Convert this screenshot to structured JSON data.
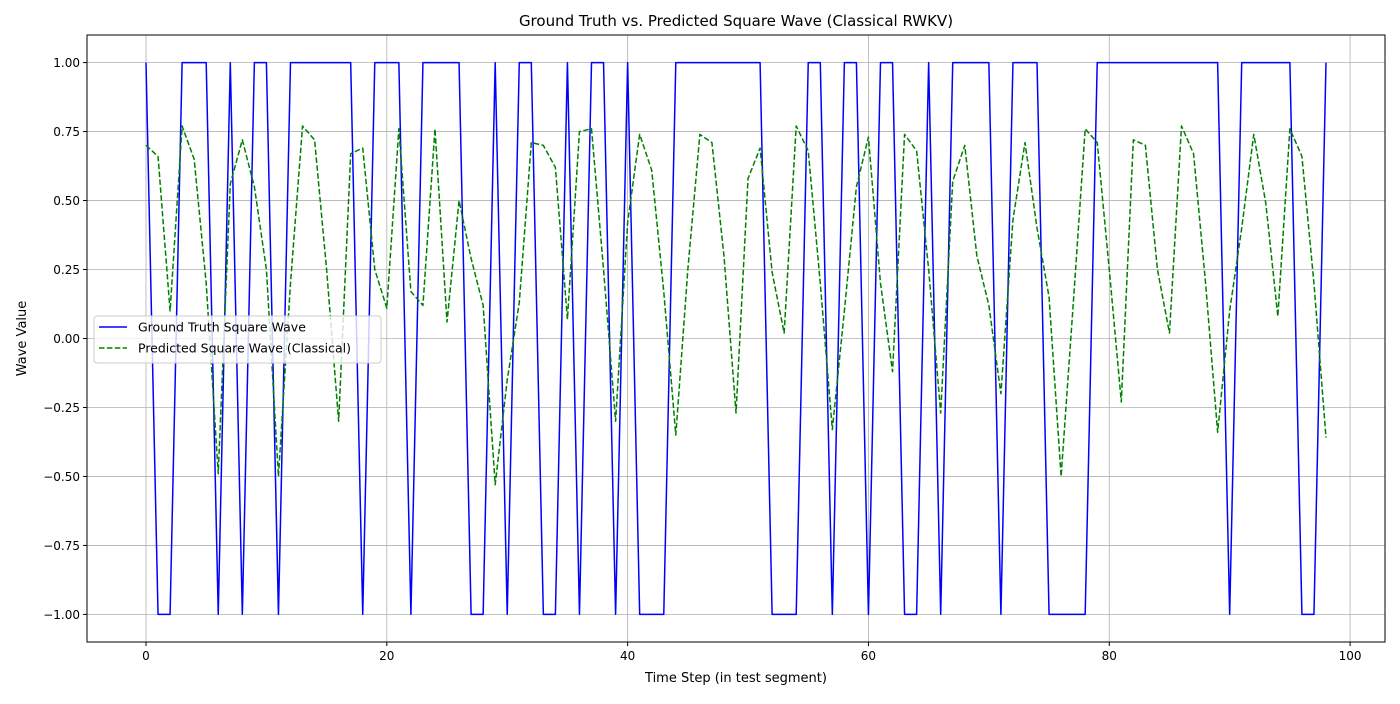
{
  "chart_data": {
    "type": "line",
    "title": "Ground Truth vs. Predicted Square Wave (Classical RWKV)",
    "xlabel": "Time Step (in test segment)",
    "ylabel": "Wave Value",
    "xlim": [
      -4.9,
      102.9
    ],
    "ylim": [
      -1.1,
      1.1
    ],
    "xticks": [
      0,
      20,
      40,
      60,
      80,
      100
    ],
    "yticks": [
      -1.0,
      -0.75,
      -0.5,
      -0.25,
      0.0,
      0.25,
      0.5,
      0.75,
      1.0
    ],
    "xtick_labels": [
      "0",
      "20",
      "40",
      "60",
      "80",
      "100"
    ],
    "ytick_labels": [
      "−1.00",
      "−0.75",
      "−0.50",
      "−0.25",
      "0.00",
      "0.25",
      "0.50",
      "0.75",
      "1.00"
    ],
    "grid": true,
    "legend_position": "center-left",
    "series": [
      {
        "name": "Ground Truth Square Wave",
        "color": "#0000ff",
        "style": "solid",
        "x": [
          0,
          1,
          2,
          3,
          4,
          5,
          6,
          7,
          8,
          9,
          10,
          11,
          12,
          13,
          14,
          15,
          16,
          17,
          18,
          19,
          20,
          21,
          22,
          23,
          24,
          25,
          26,
          27,
          28,
          29,
          30,
          31,
          32,
          33,
          34,
          35,
          36,
          37,
          38,
          39,
          40,
          41,
          42,
          43,
          44,
          45,
          46,
          47,
          48,
          49,
          50,
          51,
          52,
          53,
          54,
          55,
          56,
          57,
          58,
          59,
          60,
          61,
          62,
          63,
          64,
          65,
          66,
          67,
          68,
          69,
          70,
          71,
          72,
          73,
          74,
          75,
          76,
          77,
          78,
          79,
          80,
          81,
          82,
          83,
          84,
          85,
          86,
          87,
          88,
          89,
          90,
          91,
          92,
          93,
          94,
          95,
          96,
          97,
          98
        ],
        "y": [
          1,
          -1,
          -1,
          1,
          1,
          1,
          -1,
          1,
          -1,
          1,
          1,
          -1,
          1,
          1,
          1,
          1,
          1,
          1,
          -1,
          1,
          1,
          1,
          -1,
          1,
          1,
          1,
          1,
          -1,
          -1,
          1,
          -1,
          1,
          1,
          -1,
          -1,
          1,
          -1,
          1,
          1,
          -1,
          1,
          -1,
          -1,
          -1,
          1,
          1,
          1,
          1,
          1,
          1,
          1,
          1,
          -1,
          -1,
          -1,
          1,
          1,
          -1,
          1,
          1,
          -1,
          1,
          1,
          -1,
          -1,
          1,
          -1,
          1,
          1,
          1,
          1,
          -1,
          1,
          1,
          1,
          -1,
          -1,
          -1,
          -1,
          1,
          1,
          1,
          1,
          1,
          1,
          1,
          1,
          1,
          1,
          1,
          -1,
          1,
          1,
          1,
          1,
          1,
          -1,
          -1,
          1
        ]
      },
      {
        "name": "Predicted Square Wave (Classical)",
        "color": "#008000",
        "style": "dashed",
        "x": [
          0,
          1,
          2,
          3,
          4,
          5,
          6,
          7,
          8,
          9,
          10,
          11,
          12,
          13,
          14,
          15,
          16,
          17,
          18,
          19,
          20,
          21,
          22,
          23,
          24,
          25,
          26,
          27,
          28,
          29,
          30,
          31,
          32,
          33,
          34,
          35,
          36,
          37,
          38,
          39,
          40,
          41,
          42,
          43,
          44,
          45,
          46,
          47,
          48,
          49,
          50,
          51,
          52,
          53,
          54,
          55,
          56,
          57,
          58,
          59,
          60,
          61,
          62,
          63,
          64,
          65,
          66,
          67,
          68,
          69,
          70,
          71,
          72,
          73,
          74,
          75,
          76,
          77,
          78,
          79,
          80,
          81,
          82,
          83,
          84,
          85,
          86,
          87,
          88,
          89,
          90,
          91,
          92,
          93,
          94,
          95,
          96,
          97,
          98
        ],
        "y": [
          0.7,
          0.66,
          0.1,
          0.77,
          0.65,
          0.2,
          -0.49,
          0.56,
          0.72,
          0.55,
          0.25,
          -0.5,
          0.2,
          0.77,
          0.72,
          0.25,
          -0.3,
          0.67,
          0.69,
          0.25,
          0.11,
          0.76,
          0.17,
          0.12,
          0.76,
          0.06,
          0.5,
          0.29,
          0.12,
          -0.53,
          -0.15,
          0.13,
          0.71,
          0.7,
          0.62,
          0.07,
          0.75,
          0.76,
          0.25,
          -0.3,
          0.42,
          0.74,
          0.61,
          0.17,
          -0.35,
          0.25,
          0.74,
          0.71,
          0.3,
          -0.27,
          0.58,
          0.69,
          0.24,
          0.02,
          0.77,
          0.68,
          0.2,
          -0.33,
          0.1,
          0.55,
          0.73,
          0.2,
          -0.12,
          0.74,
          0.68,
          0.25,
          -0.27,
          0.57,
          0.7,
          0.3,
          0.12,
          -0.2,
          0.43,
          0.71,
          0.4,
          0.15,
          -0.5,
          0.12,
          0.76,
          0.71,
          0.25,
          -0.23,
          0.72,
          0.7,
          0.25,
          0.02,
          0.77,
          0.67,
          0.2,
          -0.34,
          0.1,
          0.4,
          0.74,
          0.49,
          0.08,
          0.76,
          0.66,
          0.2,
          -0.36
        ]
      }
    ]
  }
}
